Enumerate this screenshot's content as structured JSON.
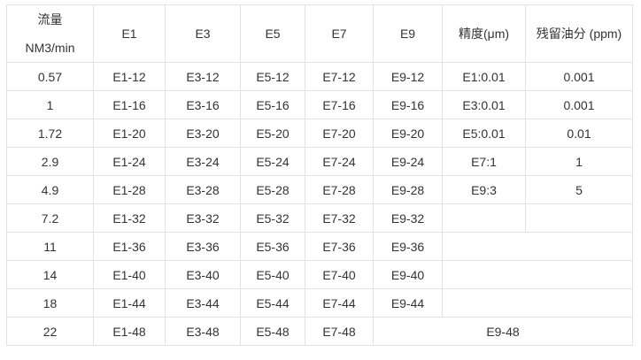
{
  "header": {
    "flow_label": "流量",
    "flow_unit": "NM3/min",
    "columns": [
      "E1",
      "E3",
      "E5",
      "E7",
      "E9",
      "精度(μm)",
      "残留油分 (ppm)"
    ]
  },
  "rows": [
    {
      "flow": "0.57",
      "models": [
        "E1-12",
        "E3-12",
        "E5-12",
        "E7-12",
        "E9-12"
      ],
      "precision": "E1:0.01",
      "oil": "0.001"
    },
    {
      "flow": "1",
      "models": [
        "E1-16",
        "E3-16",
        "E5-16",
        "E7-16",
        "E9-16"
      ],
      "precision": "E3:0.01",
      "oil": "0.001"
    },
    {
      "flow": "1.72",
      "models": [
        "E1-20",
        "E3-20",
        "E5-20",
        "E7-20",
        "E9-20"
      ],
      "precision": "E5:0.01",
      "oil": "0.01"
    },
    {
      "flow": "2.9",
      "models": [
        "E1-24",
        "E3-24",
        "E5-24",
        "E7-24",
        "E9-24"
      ],
      "precision": "E7:1",
      "oil": "1"
    },
    {
      "flow": "4.9",
      "models": [
        "E1-28",
        "E3-28",
        "E5-28",
        "E7-28",
        "E9-28"
      ],
      "precision": "E9:3",
      "oil": "5"
    },
    {
      "flow": "7.2",
      "models": [
        "E1-32",
        "E3-32",
        "E5-32",
        "E7-32",
        "E9-32"
      ],
      "precision": "",
      "oil": ""
    },
    {
      "flow": "11",
      "models": [
        "E1-36",
        "E3-36",
        "E5-36",
        "E7-36",
        "E9-36"
      ]
    },
    {
      "flow": "14",
      "models": [
        "E1-40",
        "E3-40",
        "E5-40",
        "E7-40",
        "E9-40"
      ]
    },
    {
      "flow": "18",
      "models": [
        "E1-44",
        "E3-44",
        "E5-44",
        "E7-44",
        "E9-44"
      ]
    },
    {
      "flow": "22",
      "models": [
        "E1-48",
        "E3-48",
        "E5-48",
        "E7-48"
      ],
      "merged_last": "E9-48"
    }
  ]
}
